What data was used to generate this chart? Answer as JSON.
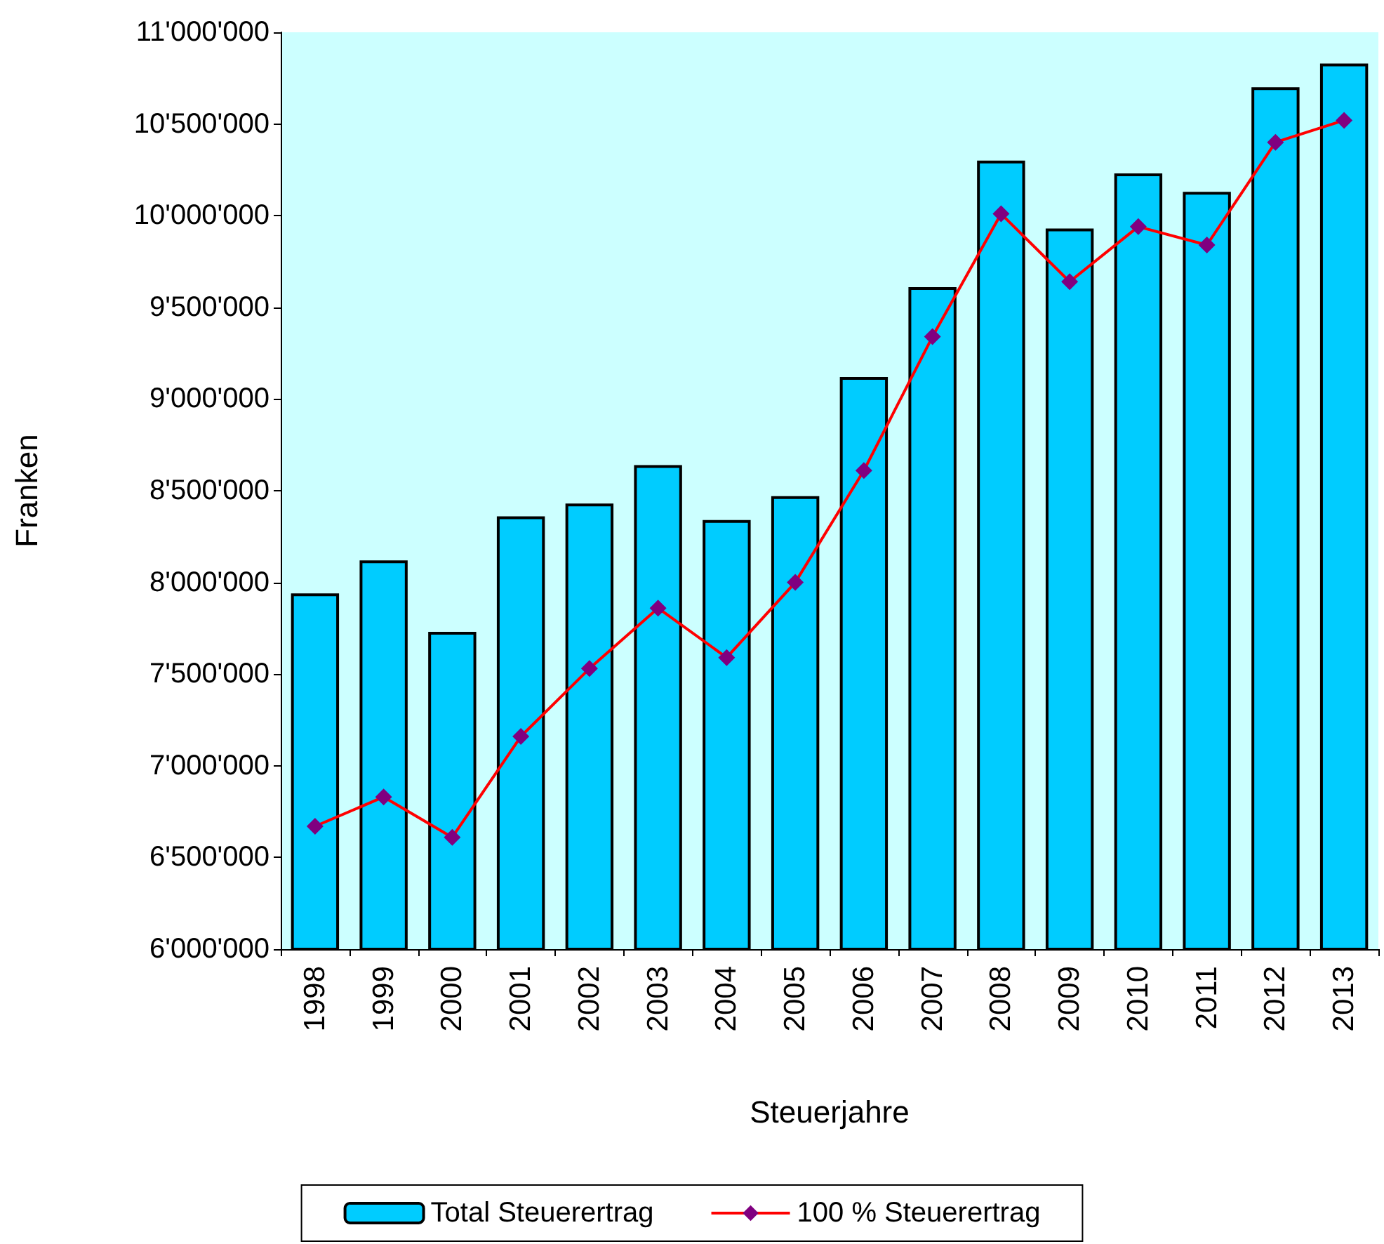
{
  "chart_data": {
    "type": "bar",
    "xlabel": "Steuerjahre",
    "ylabel": "Franken",
    "categories": [
      "1998",
      "1999",
      "2000",
      "2001",
      "2002",
      "2003",
      "2004",
      "2005",
      "2006",
      "2007",
      "2008",
      "2009",
      "2010",
      "2011",
      "2012",
      "2013"
    ],
    "series": [
      {
        "name": "Total Steuerertrag",
        "color": "#00ccff",
        "values": [
          7940000,
          8120000,
          7730000,
          8360000,
          8430000,
          8640000,
          8340000,
          8470000,
          9120000,
          9610000,
          10300000,
          9930000,
          10230000,
          10130000,
          10700000,
          10830000
        ]
      },
      {
        "name": "100 % Steuerertrag",
        "type": "line",
        "color": "#ff0000",
        "marker": "diamond",
        "values": [
          6670000,
          6830000,
          6610000,
          7160000,
          7530000,
          7860000,
          7590000,
          8000000,
          8610000,
          9340000,
          10010000,
          9640000,
          9940000,
          9840000,
          10400000,
          10520000
        ]
      }
    ],
    "ylim": [
      6000000,
      11000000
    ],
    "yticks": [
      {
        "value": 6000000,
        "label": "6'000'000"
      },
      {
        "value": 6500000,
        "label": "6'500'000"
      },
      {
        "value": 7000000,
        "label": "7'000'000"
      },
      {
        "value": 7500000,
        "label": "7'500'000"
      },
      {
        "value": 8000000,
        "label": "8'000'000"
      },
      {
        "value": 8500000,
        "label": "8'500'000"
      },
      {
        "value": 9000000,
        "label": "9'000'000"
      },
      {
        "value": 9500000,
        "label": "9'500'000"
      },
      {
        "value": 10000000,
        "label": "10'000'000"
      },
      {
        "value": 10500000,
        "label": "10'500'000"
      },
      {
        "value": 11000000,
        "label": "11'000'000"
      }
    ],
    "grid": false,
    "legend": "bottom"
  }
}
